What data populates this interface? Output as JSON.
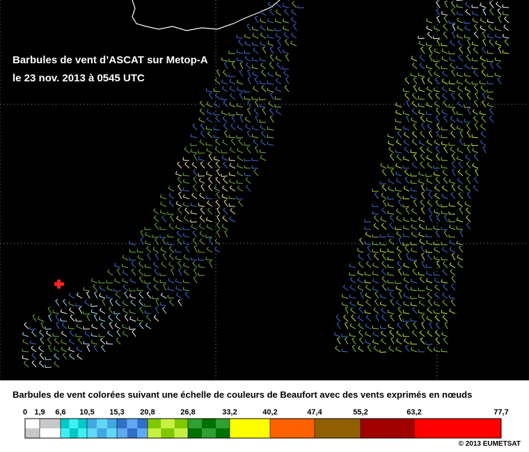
{
  "map": {
    "title_line1": "Barbules de vent d’ASCAT sur Metop-A",
    "title_line2": "le 23 nov. 2013 à 0545 UTC"
  },
  "legend": {
    "title": "Barbules de vent colorées suivant une échelle de couleurs de Beaufort avec des vents exprimés en nœuds",
    "ticks": [
      "0",
      "1,9",
      "6,6",
      "10,5",
      "15,3",
      "20,8",
      "26,8",
      "33,2",
      "40,2",
      "47,4",
      "55,2",
      "63,2",
      "77,7"
    ],
    "classes": [
      {
        "top": "#ffffff",
        "bottom": "#c8c8c8"
      },
      {
        "top": "#c8c8c8",
        "bottom": "#ffffff"
      },
      {
        "top": "#00c8c8",
        "bottom": "#40f0f0"
      },
      {
        "top": "#40a8e0",
        "bottom": "#60d8f8"
      },
      {
        "top": "#3070c8",
        "bottom": "#60a8f0"
      },
      {
        "top": "#80c800",
        "bottom": "#c8f040"
      },
      {
        "top": "#30a030",
        "bottom": "#007000"
      },
      {
        "top": "#ffff00",
        "bottom": "#ffff00"
      },
      {
        "top": "#ff6000",
        "bottom": "#ff6000"
      },
      {
        "top": "#906000",
        "bottom": "#906000"
      },
      {
        "top": "#a00000",
        "bottom": "#a00000"
      },
      {
        "top": "#ff0000",
        "bottom": "#ff0000"
      }
    ],
    "copyright": "© 2013 EUMETSAT"
  },
  "colors": {
    "background": "#000000",
    "grid": "#9a9a9a",
    "coastline": "#ffffff",
    "marker": "#ff2020"
  }
}
